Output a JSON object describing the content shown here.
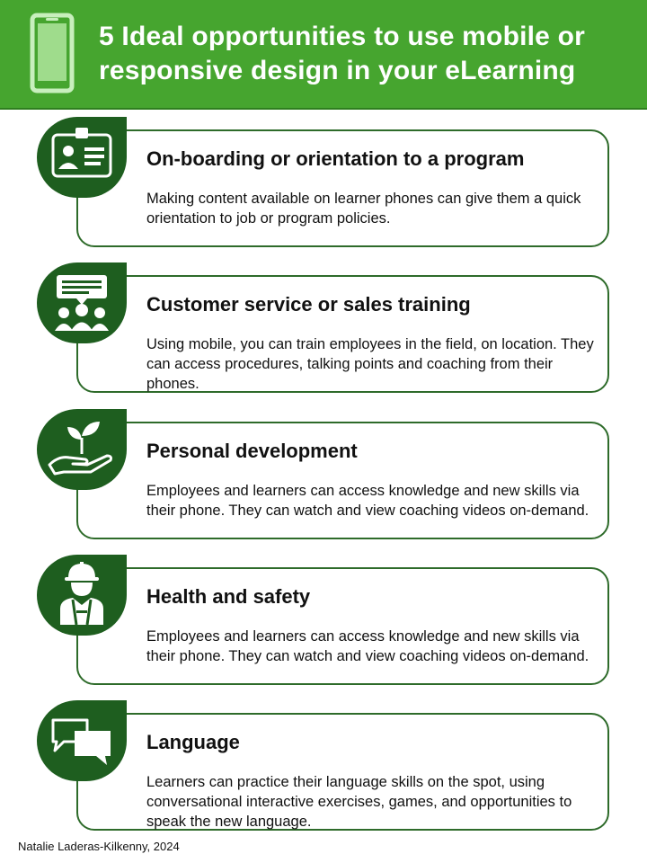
{
  "header": {
    "title_line1": "5 Ideal opportunities to use mobile or",
    "title_line2": "responsive design in your eLearning",
    "icon": "smartphone-icon",
    "color": "#46a52f"
  },
  "accent_color": "#1e5e1f",
  "cards": [
    {
      "icon": "id-badge-icon",
      "title": "On-boarding or orientation to a program",
      "body": "Making content available on learner phones can give them a quick orientation to job or program policies."
    },
    {
      "icon": "group-chat-icon",
      "title": "Customer service or sales training",
      "body": "Using mobile, you can train employees in the field, on location. They can access procedures,  talking points and coaching from their phones."
    },
    {
      "icon": "plant-in-hand-icon",
      "title": "Personal development",
      "body": "Employees and learners can access knowledge and new skills via their phone. They can watch and view coaching videos on-demand."
    },
    {
      "icon": "construction-worker-icon",
      "title": "Health and safety",
      "body": "Employees and learners can access knowledge and new skills via their phone. They can watch and view coaching videos on-demand."
    },
    {
      "icon": "conversation-icon",
      "title": "Language",
      "body": "Learners can practice their language skills on the spot, using conversational interactive exercises, games, and opportunities to speak the new language."
    }
  ],
  "footer": {
    "credit": "Natalie Laderas-Kilkenny, 2024"
  }
}
